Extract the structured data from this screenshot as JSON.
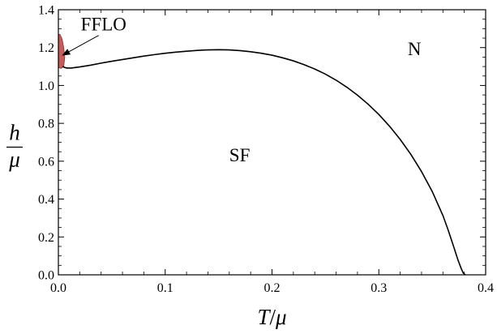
{
  "chart_data": {
    "type": "line",
    "title": "",
    "xlabel": {
      "numerator": "T",
      "slash": "/",
      "denominator": "μ"
    },
    "ylabel": {
      "numerator": "h",
      "denominator": "μ"
    },
    "xlim": [
      0.0,
      0.4
    ],
    "ylim": [
      0.0,
      1.4
    ],
    "grid": false,
    "x_ticks": [
      0.0,
      0.1,
      0.2,
      0.3,
      0.4
    ],
    "y_ticks": [
      0.0,
      0.2,
      0.4,
      0.6,
      0.8,
      1.0,
      1.2,
      1.4
    ],
    "x_tick_labels": [
      "0.0",
      "0.1",
      "0.2",
      "0.3",
      "0.4"
    ],
    "y_tick_labels": [
      "0.0",
      "0.2",
      "0.4",
      "0.6",
      "0.8",
      "1.0",
      "1.2",
      "1.4"
    ],
    "series": [
      {
        "color": "#000000",
        "x": [
          0.004,
          0.006,
          0.008,
          0.012,
          0.02,
          0.03,
          0.04,
          0.05,
          0.06,
          0.07,
          0.08,
          0.09,
          0.1,
          0.11,
          0.12,
          0.13,
          0.14,
          0.15,
          0.16,
          0.17,
          0.18,
          0.19,
          0.2,
          0.21,
          0.22,
          0.23,
          0.24,
          0.25,
          0.26,
          0.27,
          0.28,
          0.29,
          0.3,
          0.31,
          0.32,
          0.33,
          0.34,
          0.35,
          0.36,
          0.365,
          0.37,
          0.374,
          0.377,
          0.379,
          0.3805,
          0.381
        ],
        "y": [
          1.1,
          1.095,
          1.092,
          1.092,
          1.098,
          1.107,
          1.118,
          1.128,
          1.137,
          1.146,
          1.155,
          1.163,
          1.17,
          1.176,
          1.181,
          1.185,
          1.188,
          1.189,
          1.188,
          1.184,
          1.178,
          1.17,
          1.16,
          1.146,
          1.13,
          1.11,
          1.087,
          1.06,
          1.028,
          0.991,
          0.949,
          0.901,
          0.847,
          0.785,
          0.715,
          0.636,
          0.545,
          0.44,
          0.313,
          0.235,
          0.15,
          0.08,
          0.035,
          0.01,
          0.002,
          0.0
        ]
      }
    ],
    "ffloRegion": {
      "color": "#c75c5c",
      "edge": "#8b2f2f",
      "x": [
        0.0,
        0.0025,
        0.005,
        0.006,
        0.005,
        0.0035,
        0.0015,
        0.0
      ],
      "y": [
        1.095,
        1.09,
        1.1,
        1.15,
        1.2,
        1.245,
        1.27,
        1.27
      ]
    },
    "annotations": [
      {
        "text": "FFLO",
        "x": 0.021,
        "y": 1.29,
        "arrow_to": [
          0.004,
          1.16
        ]
      },
      {
        "text": "N",
        "x": 0.327,
        "y": 1.16
      },
      {
        "text": "SF",
        "x": 0.16,
        "y": 0.6
      }
    ]
  }
}
